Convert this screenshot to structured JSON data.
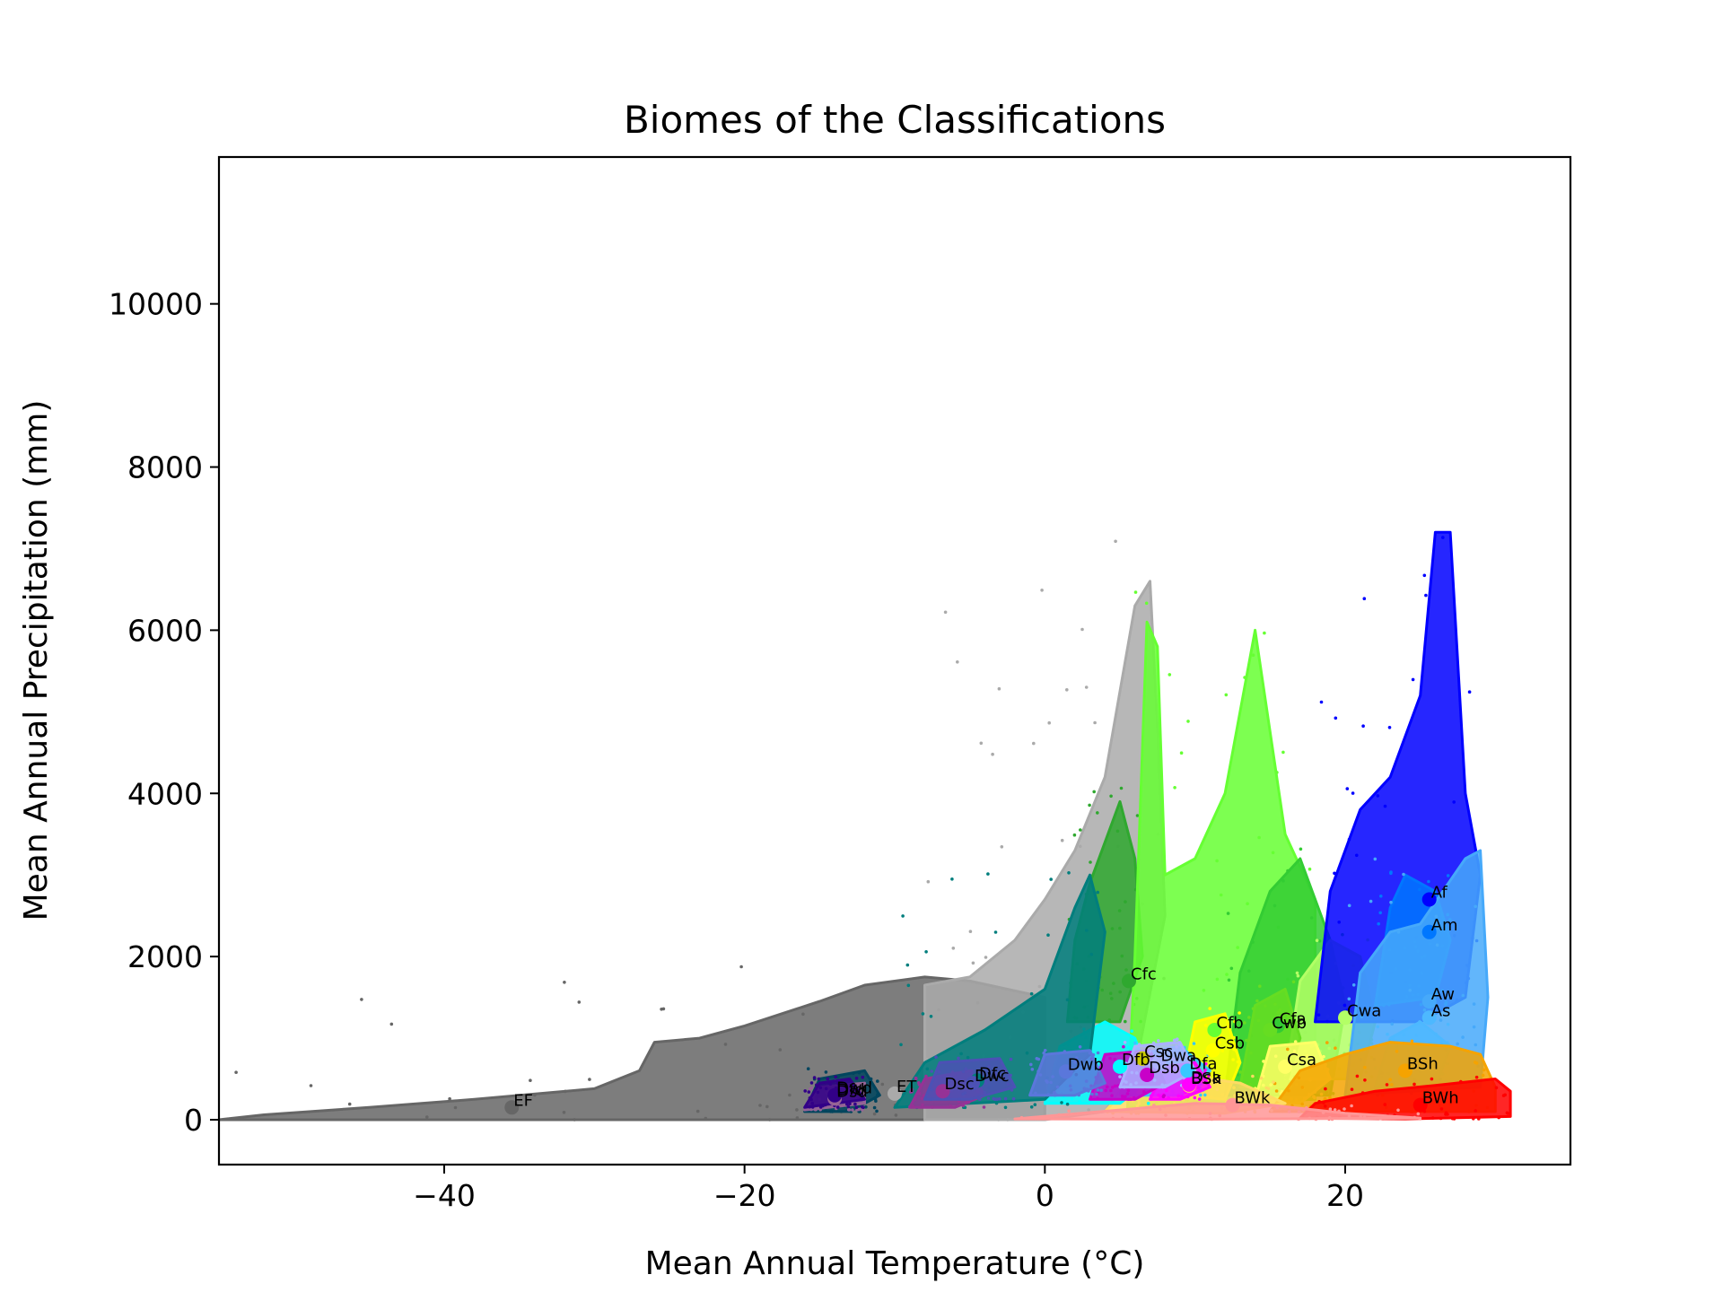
{
  "chart_data": {
    "type": "scatter",
    "title": "Biomes of the Classifications",
    "xlabel": "Mean Annual Temperature (°C)",
    "ylabel": "Mean Annual Precipitation (mm)",
    "xlim": [
      -55,
      35
    ],
    "ylim": [
      -550,
      11800
    ],
    "xticks": [
      -40,
      -20,
      0,
      20
    ],
    "xtick_labels": [
      "−40",
      "−20",
      "0",
      "20"
    ],
    "yticks": [
      0,
      2000,
      4000,
      6000,
      8000,
      10000
    ],
    "ytick_labels": [
      "0",
      "2000",
      "4000",
      "6000",
      "8000",
      "10000"
    ],
    "grid": false,
    "legend": "none",
    "series": [
      {
        "label": "EF",
        "x": -35.5,
        "y": 150,
        "color": "#666666",
        "envelope": [
          [
            -55,
            0
          ],
          [
            -52,
            60
          ],
          [
            -45,
            150
          ],
          [
            -38,
            250
          ],
          [
            -30,
            380
          ],
          [
            -27,
            600
          ],
          [
            -26,
            950
          ],
          [
            -23,
            1000
          ],
          [
            -20,
            1150
          ],
          [
            -15,
            1450
          ],
          [
            -12,
            1650
          ],
          [
            -8,
            1750
          ],
          [
            -5,
            1700
          ],
          [
            0,
            1500
          ],
          [
            0,
            0
          ]
        ]
      },
      {
        "label": "ET",
        "x": -10,
        "y": 320,
        "color": "#aaaaaa",
        "envelope": [
          [
            -8,
            0
          ],
          [
            -8,
            1650
          ],
          [
            -5,
            1750
          ],
          [
            -2,
            2200
          ],
          [
            0,
            2700
          ],
          [
            2,
            3300
          ],
          [
            4,
            4200
          ],
          [
            6,
            6300
          ],
          [
            7,
            6600
          ],
          [
            7.5,
            4800
          ],
          [
            8,
            2500
          ],
          [
            6,
            600
          ],
          [
            4,
            100
          ],
          [
            0,
            0
          ]
        ]
      },
      {
        "label": "Cfc",
        "x": 5.6,
        "y": 1700,
        "color": "#2fa82f",
        "envelope": [
          [
            1.5,
            1200
          ],
          [
            2,
            2200
          ],
          [
            3,
            2900
          ],
          [
            4,
            3400
          ],
          [
            5,
            3900
          ],
          [
            6,
            3200
          ],
          [
            6.5,
            2000
          ],
          [
            5,
            1200
          ]
        ]
      },
      {
        "label": "Cfb",
        "x": 11.3,
        "y": 1100,
        "color": "#66ff33",
        "envelope": [
          [
            5.5,
            150
          ],
          [
            6,
            2000
          ],
          [
            6.8,
            6100
          ],
          [
            7.5,
            5800
          ],
          [
            8,
            3000
          ],
          [
            10,
            3200
          ],
          [
            12,
            4000
          ],
          [
            14,
            6000
          ],
          [
            16,
            3500
          ],
          [
            18,
            2700
          ],
          [
            18,
            250
          ]
        ]
      },
      {
        "label": "Cfa",
        "x": 15.5,
        "y": 1150,
        "color": "#33cc33",
        "envelope": [
          [
            12,
            300
          ],
          [
            13,
            1800
          ],
          [
            15,
            2800
          ],
          [
            17,
            3200
          ],
          [
            19,
            2200
          ],
          [
            20,
            1400
          ],
          [
            19,
            300
          ]
        ]
      },
      {
        "label": "Cwa",
        "x": 20,
        "y": 1250,
        "color": "#b3ff66",
        "envelope": [
          [
            16,
            500
          ],
          [
            17,
            1700
          ],
          [
            19,
            2200
          ],
          [
            21,
            2000
          ],
          [
            22,
            1200
          ],
          [
            21,
            500
          ]
        ]
      },
      {
        "label": "Cwb",
        "x": 15,
        "y": 1100,
        "color": "#66dd22",
        "envelope": [
          [
            13,
            400
          ],
          [
            14,
            1400
          ],
          [
            16,
            1600
          ],
          [
            17,
            1000
          ],
          [
            16,
            400
          ]
        ]
      },
      {
        "label": "Csb",
        "x": 11.2,
        "y": 850,
        "color": "#ffff00",
        "envelope": [
          [
            9,
            300
          ],
          [
            10,
            1200
          ],
          [
            12,
            1300
          ],
          [
            13,
            700
          ],
          [
            12,
            250
          ]
        ]
      },
      {
        "label": "Csa",
        "x": 16,
        "y": 650,
        "color": "#ffff66",
        "envelope": [
          [
            14,
            250
          ],
          [
            15,
            900
          ],
          [
            18,
            950
          ],
          [
            19,
            500
          ],
          [
            17,
            200
          ]
        ]
      },
      {
        "label": "Csc",
        "x": 6.5,
        "y": 750,
        "color": "#cccc00",
        "envelope": [
          [
            5,
            500
          ],
          [
            6,
            900
          ],
          [
            7.5,
            850
          ],
          [
            7,
            500
          ]
        ]
      },
      {
        "label": "Af",
        "x": 25.6,
        "y": 2700,
        "color": "#0000ff",
        "envelope": [
          [
            18,
            1200
          ],
          [
            19,
            2800
          ],
          [
            21,
            3800
          ],
          [
            23,
            4200
          ],
          [
            25,
            5200
          ],
          [
            26,
            7200
          ],
          [
            27,
            7200
          ],
          [
            28,
            4000
          ],
          [
            29,
            3000
          ],
          [
            28,
            1500
          ],
          [
            25,
            1200
          ]
        ]
      },
      {
        "label": "Am",
        "x": 25.6,
        "y": 2300,
        "color": "#0077ff",
        "envelope": [
          [
            22,
            1400
          ],
          [
            23,
            2600
          ],
          [
            24,
            3000
          ],
          [
            26,
            2800
          ],
          [
            27,
            2200
          ],
          [
            26,
            1500
          ]
        ]
      },
      {
        "label": "Aw",
        "x": 25.6,
        "y": 1450,
        "color": "#46a9fa",
        "envelope": [
          [
            20,
            300
          ],
          [
            21,
            1800
          ],
          [
            23,
            2300
          ],
          [
            25,
            2400
          ],
          [
            28,
            3200
          ],
          [
            29,
            3300
          ],
          [
            29.5,
            1500
          ],
          [
            29,
            400
          ]
        ]
      },
      {
        "label": "As",
        "x": 25.6,
        "y": 1250,
        "color": "#4db8ff",
        "envelope": [
          [
            22,
            400
          ],
          [
            23,
            1000
          ],
          [
            25,
            1200
          ],
          [
            27,
            900
          ],
          [
            26,
            400
          ]
        ]
      },
      {
        "label": "BSh",
        "x": 24,
        "y": 600,
        "color": "#f5a301",
        "envelope": [
          [
            15,
            100
          ],
          [
            17,
            600
          ],
          [
            20,
            800
          ],
          [
            23,
            950
          ],
          [
            27,
            900
          ],
          [
            29,
            800
          ],
          [
            30,
            400
          ],
          [
            30,
            100
          ]
        ]
      },
      {
        "label": "BSk",
        "x": 9.6,
        "y": 420,
        "color": "#ffdb63",
        "envelope": [
          [
            4,
            100
          ],
          [
            6,
            500
          ],
          [
            9,
            550
          ],
          [
            13,
            450
          ],
          [
            16,
            200
          ],
          [
            12,
            80
          ]
        ]
      },
      {
        "label": "BWh",
        "x": 25,
        "y": 180,
        "color": "#ff0000",
        "envelope": [
          [
            17,
            20
          ],
          [
            18,
            200
          ],
          [
            22,
            350
          ],
          [
            26,
            420
          ],
          [
            30,
            500
          ],
          [
            31,
            350
          ],
          [
            31,
            40
          ],
          [
            24,
            10
          ]
        ]
      },
      {
        "label": "BWk",
        "x": 12.5,
        "y": 180,
        "color": "#ff9696",
        "envelope": [
          [
            -2,
            10
          ],
          [
            5,
            120
          ],
          [
            10,
            200
          ],
          [
            15,
            180
          ],
          [
            20,
            80
          ],
          [
            25,
            20
          ],
          [
            10,
            5
          ]
        ]
      },
      {
        "label": "Dfb",
        "x": 5,
        "y": 650,
        "color": "#00ffff",
        "envelope": [
          [
            0,
            200
          ],
          [
            1,
            900
          ],
          [
            4,
            1200
          ],
          [
            6,
            1000
          ],
          [
            7,
            500
          ],
          [
            5,
            200
          ]
        ]
      },
      {
        "label": "Dfa",
        "x": 9.5,
        "y": 600,
        "color": "#37c8ff",
        "envelope": [
          [
            5,
            300
          ],
          [
            6,
            800
          ],
          [
            9,
            900
          ],
          [
            11,
            600
          ],
          [
            9,
            300
          ]
        ]
      },
      {
        "label": "Dfc",
        "x": -4.5,
        "y": 480,
        "color": "#007e7d",
        "envelope": [
          [
            -10,
            150
          ],
          [
            -8,
            700
          ],
          [
            -4,
            1100
          ],
          [
            0,
            1600
          ],
          [
            2,
            2600
          ],
          [
            3,
            3000
          ],
          [
            4,
            2300
          ],
          [
            3,
            800
          ],
          [
            0,
            250
          ]
        ]
      },
      {
        "label": "Dfd",
        "x": -14,
        "y": 280,
        "color": "#00455e",
        "envelope": [
          [
            -16,
            100
          ],
          [
            -15,
            500
          ],
          [
            -12,
            600
          ],
          [
            -11,
            300
          ],
          [
            -13,
            100
          ]
        ]
      },
      {
        "label": "Dsa",
        "x": 9.6,
        "y": 430,
        "color": "#ff00ff",
        "envelope": [
          [
            7,
            250
          ],
          [
            8,
            650
          ],
          [
            10,
            700
          ],
          [
            11,
            400
          ],
          [
            9,
            250
          ]
        ]
      },
      {
        "label": "Dsb",
        "x": 6.8,
        "y": 550,
        "color": "#c800c8",
        "envelope": [
          [
            3,
            250
          ],
          [
            4,
            800
          ],
          [
            7,
            850
          ],
          [
            8,
            450
          ],
          [
            6,
            250
          ]
        ]
      },
      {
        "label": "Dsc",
        "x": -6.8,
        "y": 350,
        "color": "#963296",
        "envelope": [
          [
            -9,
            150
          ],
          [
            -8,
            500
          ],
          [
            -5,
            600
          ],
          [
            -4,
            300
          ],
          [
            -6,
            150
          ]
        ]
      },
      {
        "label": "Dsd",
        "x": -14,
        "y": 260,
        "color": "#966496",
        "envelope": [
          [
            -16,
            120
          ],
          [
            -15,
            400
          ],
          [
            -12,
            450
          ],
          [
            -12,
            200
          ]
        ]
      },
      {
        "label": "Dwa",
        "x": 7.6,
        "y": 700,
        "color": "#abb1ff",
        "envelope": [
          [
            5,
            400
          ],
          [
            6,
            900
          ],
          [
            9,
            950
          ],
          [
            10,
            600
          ],
          [
            8,
            400
          ]
        ]
      },
      {
        "label": "Dwb",
        "x": 1.4,
        "y": 590,
        "color": "#5a77db",
        "envelope": [
          [
            -1,
            300
          ],
          [
            0,
            800
          ],
          [
            3,
            850
          ],
          [
            4,
            450
          ],
          [
            2,
            300
          ]
        ]
      },
      {
        "label": "Dwc",
        "x": -4.8,
        "y": 450,
        "color": "#4c51b5",
        "envelope": [
          [
            -8,
            250
          ],
          [
            -7,
            700
          ],
          [
            -3,
            750
          ],
          [
            -2,
            400
          ],
          [
            -5,
            250
          ]
        ]
      },
      {
        "label": "Dwd",
        "x": -14,
        "y": 300,
        "color": "#320087",
        "envelope": [
          [
            -16,
            150
          ],
          [
            -15,
            450
          ],
          [
            -13,
            500
          ],
          [
            -12,
            250
          ]
        ]
      }
    ]
  }
}
